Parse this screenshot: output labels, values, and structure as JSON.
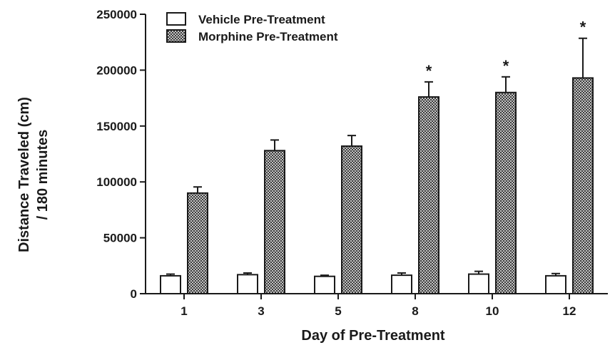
{
  "chart_data": {
    "type": "bar",
    "title": "",
    "xlabel": "Day of Pre-Treatment",
    "ylabel": [
      "Distance Traveled (cm)",
      "/ 180 minutes"
    ],
    "ylim": [
      0,
      250000
    ],
    "yticks": [
      0,
      50000,
      100000,
      150000,
      200000,
      250000
    ],
    "categories": [
      "1",
      "3",
      "5",
      "8",
      "10",
      "12"
    ],
    "series": [
      {
        "name": "Vehicle Pre-Treatment",
        "pattern": "white",
        "values": [
          16000,
          17000,
          15500,
          16500,
          17500,
          16000
        ],
        "errors": [
          1500,
          1500,
          1000,
          2000,
          2500,
          2000
        ]
      },
      {
        "name": "Morphine Pre-Treatment",
        "pattern": "crosshatch",
        "values": [
          90000,
          128000,
          132000,
          176000,
          180000,
          193000
        ],
        "errors": [
          5500,
          9500,
          9500,
          13500,
          14000,
          35500
        ]
      }
    ],
    "significance": [
      "",
      "",
      "",
      "*",
      "*",
      "*"
    ],
    "legend_position": "top-left",
    "grid": false,
    "colors": {
      "bar_edge": "#1a1a1a",
      "bar_fill": "#ffffff",
      "hatch": "#3a3a3a"
    }
  }
}
